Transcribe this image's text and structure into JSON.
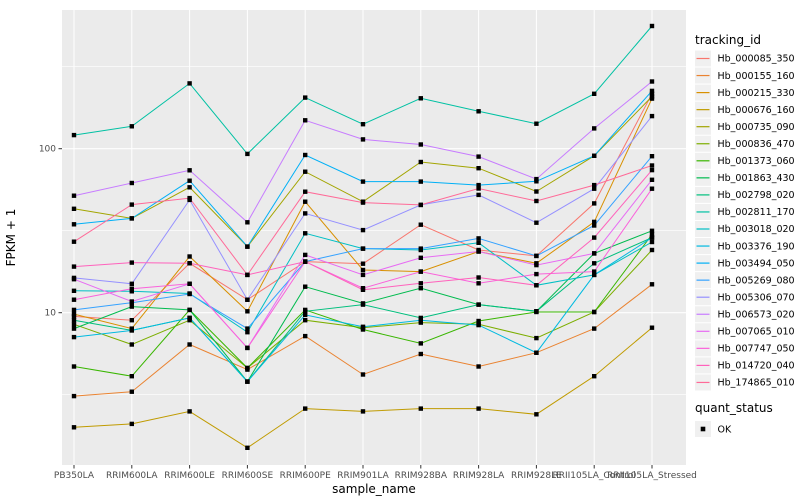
{
  "figure": {
    "y_axis": {
      "title": "FPKM + 1"
    },
    "x_axis": {
      "title": "sample_name"
    },
    "legend": {
      "tracking_title": "tracking_id",
      "quant_title": "quant_status",
      "quant_label": "OK"
    },
    "colors": {
      "panel_background": "#EBEBEB",
      "gridline": "#FFFFFF",
      "tick_text": "#4D4D4D",
      "tick_mark": "#333333",
      "marker": "#000000",
      "legend_key_background": "#F0F0F0"
    }
  },
  "chart_data": {
    "type": "line",
    "title": "",
    "xlabel": "sample_name",
    "ylabel": "FPKM + 1",
    "y_scale": "log10",
    "ylim": [
      1.18,
      700
    ],
    "y_major_ticks": [
      10,
      100
    ],
    "y_minor_ticks": [
      3.162,
      31.62,
      316.2
    ],
    "grid": true,
    "legend_position": "right",
    "marker_shape": "filled-square-black",
    "marker_legend": {
      "title": "quant_status",
      "items": [
        "OK"
      ]
    },
    "categories": [
      "PB350LA",
      "RRIM600LA",
      "RRIM600LE",
      "RRIM600SE",
      "RRIM600PE",
      "RRIM901LA",
      "RRIM928BA",
      "RRIM928LA",
      "RRIM928LE",
      "RRII105LA_Control",
      "RRII105LA_Stressed"
    ],
    "series": [
      {
        "name": "Hb_000085_350",
        "color": "#F8766D",
        "values": [
          9.5,
          9.0,
          20,
          12,
          20.5,
          19.9,
          34.4,
          24.1,
          22.2,
          46.4,
          216
        ]
      },
      {
        "name": "Hb_000155_160",
        "color": "#EA8331",
        "values": [
          3.1,
          3.3,
          6.4,
          4.5,
          7.2,
          4.2,
          5.6,
          4.7,
          5.7,
          8.0,
          14.9
        ]
      },
      {
        "name": "Hb_000215_330",
        "color": "#D89000",
        "values": [
          9.8,
          8.0,
          22,
          10.2,
          47.5,
          18.2,
          17.8,
          23.6,
          20,
          35.8,
          202
        ]
      },
      {
        "name": "Hb_000676_160",
        "color": "#C09B00",
        "values": [
          2.0,
          2.1,
          2.5,
          1.5,
          2.6,
          2.5,
          2.6,
          2.6,
          2.4,
          4.1,
          8.1
        ]
      },
      {
        "name": "Hb_000735_090",
        "color": "#A3A500",
        "values": [
          43,
          37.6,
          58.2,
          25.3,
          72.4,
          47.5,
          83,
          76,
          54.8,
          90.5,
          208
        ]
      },
      {
        "name": "Hb_000836_470",
        "color": "#7CAE00",
        "values": [
          8.5,
          6.4,
          9.0,
          4.6,
          9.0,
          8.1,
          8.7,
          8.5,
          7.0,
          10.1,
          24.1
        ]
      },
      {
        "name": "Hb_001373_060",
        "color": "#39B600",
        "values": [
          4.7,
          4.1,
          10.4,
          4.6,
          10.4,
          7.9,
          6.5,
          8.9,
          10.1,
          10.1,
          30
        ]
      },
      {
        "name": "Hb_001863_430",
        "color": "#00BB4E",
        "values": [
          8.0,
          10.9,
          10.4,
          3.8,
          14.4,
          11.4,
          14.1,
          11.2,
          10.2,
          23,
          31.6
        ]
      },
      {
        "name": "Hb_002798_020",
        "color": "#00BF7D",
        "values": [
          9.0,
          7.8,
          9.3,
          3.8,
          10.2,
          11.2,
          9.3,
          11.2,
          10.2,
          20,
          28.7
        ]
      },
      {
        "name": "Hb_002811_170",
        "color": "#00C1A3",
        "values": [
          121,
          137,
          250,
          93,
          205,
          141,
          203,
          169,
          142,
          216,
          560
        ]
      },
      {
        "name": "Hb_003018_020",
        "color": "#00BFC4",
        "values": [
          13.6,
          13.5,
          13.1,
          7.6,
          30.5,
          24.6,
          24.1,
          26.7,
          14.7,
          17,
          27
        ]
      },
      {
        "name": "Hb_003376_190",
        "color": "#00BAE0",
        "values": [
          7.1,
          7.8,
          9.3,
          3.8,
          9.7,
          8.2,
          9.0,
          8.4,
          5.7,
          17,
          28.7
        ]
      },
      {
        "name": "Hb_003494_050",
        "color": "#00B0F6",
        "values": [
          34.6,
          37.6,
          63.8,
          25.3,
          91.5,
          63,
          63,
          60,
          63.3,
          90.5,
          225
        ]
      },
      {
        "name": "Hb_005269_080",
        "color": "#35A2FF",
        "values": [
          10.4,
          11.5,
          13,
          8,
          20.5,
          24.6,
          24.6,
          28.4,
          22.2,
          34,
          90
        ]
      },
      {
        "name": "Hb_005306_070",
        "color": "#9590FF",
        "values": [
          16.3,
          15,
          48.7,
          12,
          40.3,
          31.9,
          45.4,
          52.3,
          35.4,
          57,
          158
        ]
      },
      {
        "name": "Hb_006573_020",
        "color": "#C77CFF",
        "values": [
          51.7,
          61.8,
          73.8,
          35.6,
          149,
          114,
          106,
          89.5,
          65.3,
          133,
          257
        ]
      },
      {
        "name": "Hb_007065_010",
        "color": "#E76BF3",
        "values": [
          16,
          11.7,
          15,
          6.1,
          22.5,
          17,
          21.6,
          23.6,
          19.5,
          23,
          64.6
        ]
      },
      {
        "name": "Hb_007747_050",
        "color": "#FA62DB",
        "values": [
          12,
          14,
          15,
          6.1,
          20.5,
          14.1,
          17.8,
          15.1,
          17.2,
          17.8,
          57
        ]
      },
      {
        "name": "Hb_014720_040",
        "color": "#FF62BC",
        "values": [
          19.1,
          20.2,
          20,
          17,
          20.5,
          13.8,
          15.1,
          16.4,
          14.7,
          28.7,
          74
        ]
      },
      {
        "name": "Hb_174865_010",
        "color": "#FF6A98",
        "values": [
          27.1,
          45.6,
          50,
          17,
          54.7,
          46.9,
          45.4,
          57.2,
          48,
          60,
          79
        ]
      }
    ]
  }
}
